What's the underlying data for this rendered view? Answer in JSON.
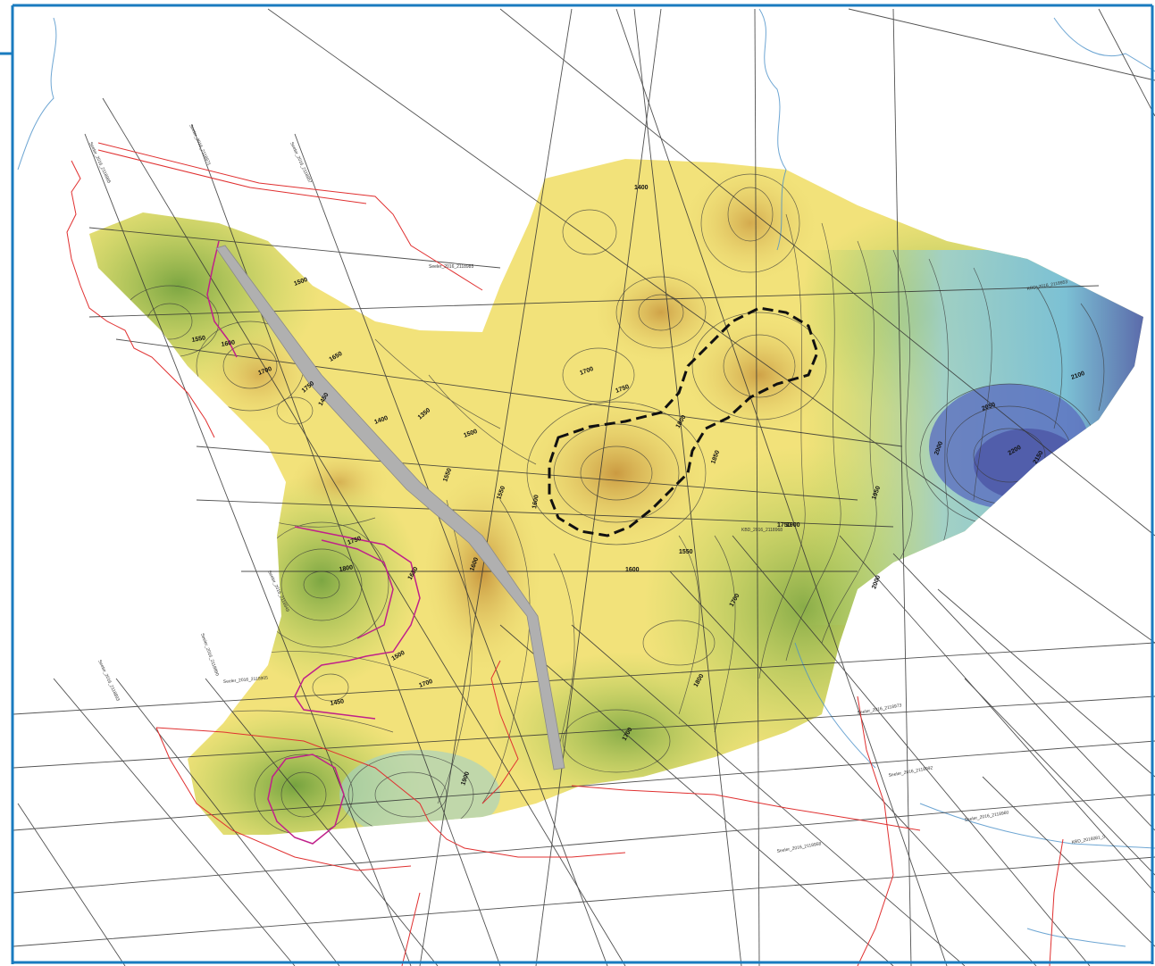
{
  "map": {
    "colors": {
      "frame": "#1a7bbf",
      "survey_line": "#333333",
      "boundary": "#e03030",
      "closure": "#c0208a",
      "river": "#4a90c8",
      "fault": "#a8a8a8",
      "prospect_outline": "#111111",
      "ramp": [
        "#6f9f3c",
        "#a9cf57",
        "#efe47a",
        "#f4e27a",
        "#dcae4f",
        "#c6923b",
        "#9fd0c9",
        "#76bfd9",
        "#5c82c6",
        "#4f5aa8"
      ]
    },
    "line_labels": [
      "Seeler_2016_2118965",
      "Seeler_2016_2118971",
      "Seeler_2016_2118957",
      "Seeler_2016_2118985",
      "Seeler_2016_2118949",
      "KBD_2016_2118953",
      "Seeler_2016_2118890",
      "Seeler_2016_2118893",
      "Seeler_2016_2118905",
      "KBD_2016_2118968",
      "Seeler_2016_2118973",
      "Seeler_2016_2118992",
      "Seeler_2016_2118960",
      "KBD_2016081_0",
      "Seeler_2016_2118958"
    ],
    "contour_labels": [
      "1400",
      "1500",
      "1550",
      "1600",
      "1650",
      "1700",
      "1750",
      "1450",
      "1400",
      "1350",
      "1500",
      "1550",
      "1600",
      "1700",
      "1750",
      "1800",
      "1850",
      "1900",
      "1950",
      "2000",
      "2050",
      "2100",
      "2150",
      "2200",
      "1550",
      "1600",
      "1700",
      "1750",
      "1750",
      "1800",
      "1650",
      "1550",
      "1600",
      "1700",
      "1500",
      "1450",
      "1900",
      "2000",
      "1800",
      "1700"
    ]
  }
}
